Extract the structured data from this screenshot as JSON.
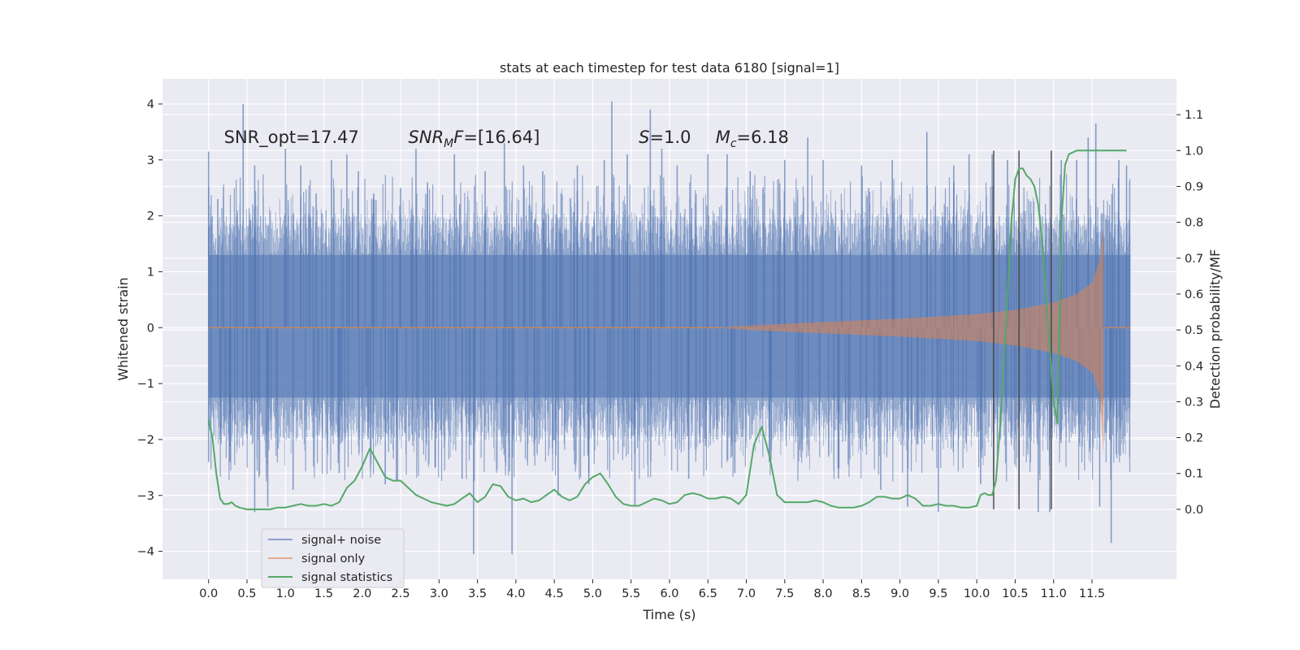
{
  "chart_data": {
    "type": "line",
    "title": "stats at each timestep for test data 6180 [signal=1]",
    "xlabel": "Time (s)",
    "ylabel_left": "Whitened strain",
    "ylabel_right": "Detection probability/MF",
    "xlim": [
      -0.6,
      12.6
    ],
    "ylim_left": [
      -4.5,
      4.45
    ],
    "ylim_right": [
      -0.195,
      1.2
    ],
    "x_ticks": [
      0.0,
      0.5,
      1.0,
      1.5,
      2.0,
      2.5,
      3.0,
      3.5,
      4.0,
      4.5,
      5.0,
      5.5,
      6.0,
      6.5,
      7.0,
      7.5,
      8.0,
      8.5,
      9.0,
      9.5,
      10.0,
      10.5,
      11.0,
      11.5
    ],
    "x_tick_labels": [
      "0.0",
      "0.5",
      "1.0",
      "1.5",
      "2.0",
      "2.5",
      "3.0",
      "3.5",
      "4.0",
      "4.5",
      "5.0",
      "5.5",
      "6.0",
      "6.5",
      "7.0",
      "7.5",
      "8.0",
      "8.5",
      "9.0",
      "9.5",
      "10.0",
      "10.5",
      "11.0",
      "11.5"
    ],
    "y_ticks_left": [
      -4,
      -3,
      -2,
      -1,
      0,
      1,
      2,
      3,
      4
    ],
    "y_tick_labels_left": [
      "−4",
      "−3",
      "−2",
      "−1",
      "0",
      "1",
      "2",
      "3",
      "4"
    ],
    "y_ticks_right": [
      0.0,
      0.1,
      0.2,
      0.3,
      0.4,
      0.5,
      0.6,
      0.7,
      0.8,
      0.9,
      1.0,
      1.1
    ],
    "y_tick_labels_right": [
      "0.0",
      "0.1",
      "0.2",
      "0.3",
      "0.4",
      "0.5",
      "0.6",
      "0.7",
      "0.8",
      "0.9",
      "1.0",
      "1.1"
    ],
    "grid": true,
    "legend_position": "lower-left",
    "colors": {
      "background": "#eaeaf2",
      "grid": "#ffffff",
      "signal_noise": "#4c72b0",
      "signal_only": "#dd8452",
      "statistics": "#55a868",
      "vlines": "#444444"
    },
    "annotations": [
      {
        "id": "snr-opt",
        "parts": [
          {
            "text": "SNR_opt=17.47",
            "italic": false
          }
        ],
        "x": 0.2,
        "y": 3.3
      },
      {
        "id": "snr-mf",
        "parts": [
          {
            "text": "SNR",
            "italic": true
          },
          {
            "text": "M",
            "italic": true,
            "sub": true
          },
          {
            "text": "F",
            "italic": true
          },
          {
            "text": "=[16.64]",
            "italic": false
          }
        ],
        "x": 2.6,
        "y": 3.3
      },
      {
        "id": "s-value",
        "parts": [
          {
            "text": "S",
            "italic": true
          },
          {
            "text": "=1.0",
            "italic": false
          }
        ],
        "x": 5.6,
        "y": 3.3
      },
      {
        "id": "mc-value",
        "parts": [
          {
            "text": "M",
            "italic": true
          },
          {
            "text": "c",
            "italic": true,
            "sub": true
          },
          {
            "text": "=6.18",
            "italic": false
          }
        ],
        "x": 6.6,
        "y": 3.3
      }
    ],
    "series": [
      {
        "name": "signal+ noise",
        "axis": "left",
        "style": "noise-band",
        "x_range": [
          0.0,
          12.0
        ],
        "dense_envelope": [
          -1.25,
          1.3
        ],
        "spike_tips": [
          {
            "x": 0.0,
            "y": 3.15
          },
          {
            "x": 0.0,
            "y": -2.4
          },
          {
            "x": 0.45,
            "y": 4.0
          },
          {
            "x": 0.12,
            "y": 2.3
          },
          {
            "x": 0.28,
            "y": -2.4
          },
          {
            "x": 0.6,
            "y": 2.9
          },
          {
            "x": 0.6,
            "y": -3.3
          },
          {
            "x": 0.77,
            "y": -3.2
          },
          {
            "x": 1.0,
            "y": 3.2
          },
          {
            "x": 1.1,
            "y": -2.9
          },
          {
            "x": 1.2,
            "y": 2.9
          },
          {
            "x": 1.4,
            "y": 2.4
          },
          {
            "x": 1.6,
            "y": 3.0
          },
          {
            "x": 1.8,
            "y": 3.1
          },
          {
            "x": 1.7,
            "y": -2.6
          },
          {
            "x": 1.95,
            "y": 2.8
          },
          {
            "x": 2.05,
            "y": -1.05
          },
          {
            "x": 2.15,
            "y": 2.4
          },
          {
            "x": 2.3,
            "y": -2.8
          },
          {
            "x": 2.5,
            "y": 2.5
          },
          {
            "x": 2.7,
            "y": 3.2
          },
          {
            "x": 2.85,
            "y": 2.6
          },
          {
            "x": 2.95,
            "y": -2.5
          },
          {
            "x": 3.2,
            "y": 3.1
          },
          {
            "x": 3.3,
            "y": -2.7
          },
          {
            "x": 3.45,
            "y": -4.05
          },
          {
            "x": 3.6,
            "y": 2.8
          },
          {
            "x": 3.85,
            "y": 3.3
          },
          {
            "x": 3.95,
            "y": -4.05
          },
          {
            "x": 4.1,
            "y": 2.9
          },
          {
            "x": 4.35,
            "y": 2.8
          },
          {
            "x": 4.55,
            "y": -3.0
          },
          {
            "x": 4.8,
            "y": 2.9
          },
          {
            "x": 4.95,
            "y": -2.8
          },
          {
            "x": 5.15,
            "y": 3.0
          },
          {
            "x": 5.25,
            "y": 4.05
          },
          {
            "x": 5.45,
            "y": 3.1
          },
          {
            "x": 5.55,
            "y": -3.2
          },
          {
            "x": 5.75,
            "y": 3.9
          },
          {
            "x": 5.9,
            "y": 3.2
          },
          {
            "x": 6.1,
            "y": 2.9
          },
          {
            "x": 6.25,
            "y": -2.7
          },
          {
            "x": 6.5,
            "y": 3.1
          },
          {
            "x": 6.75,
            "y": 3.1
          },
          {
            "x": 6.85,
            "y": -2.6
          },
          {
            "x": 7.05,
            "y": 2.8
          },
          {
            "x": 7.3,
            "y": -2.4
          },
          {
            "x": 7.5,
            "y": 3.0
          },
          {
            "x": 7.8,
            "y": 3.4
          },
          {
            "x": 8.0,
            "y": 3.0
          },
          {
            "x": 8.2,
            "y": -2.7
          },
          {
            "x": 8.5,
            "y": 2.9
          },
          {
            "x": 8.75,
            "y": -2.9
          },
          {
            "x": 8.9,
            "y": 3.0
          },
          {
            "x": 9.1,
            "y": -3.2
          },
          {
            "x": 9.35,
            "y": 3.5
          },
          {
            "x": 9.5,
            "y": -3.3
          },
          {
            "x": 9.7,
            "y": 2.9
          },
          {
            "x": 9.9,
            "y": 3.1
          },
          {
            "x": 10.05,
            "y": -2.8
          },
          {
            "x": 10.2,
            "y": 3.1
          },
          {
            "x": 10.4,
            "y": 3.0
          },
          {
            "x": 10.55,
            "y": -3.0
          },
          {
            "x": 10.8,
            "y": -3.3
          },
          {
            "x": 10.95,
            "y": -3.3
          },
          {
            "x": 11.1,
            "y": 3.0
          },
          {
            "x": 11.3,
            "y": 3.0
          },
          {
            "x": 11.45,
            "y": 3.4
          },
          {
            "x": 11.55,
            "y": 3.65
          },
          {
            "x": 11.6,
            "y": -3.2
          },
          {
            "x": 11.75,
            "y": -3.85
          },
          {
            "x": 11.85,
            "y": 3.0
          },
          {
            "x": 11.95,
            "y": 2.9
          }
        ]
      },
      {
        "name": "signal only",
        "axis": "left",
        "style": "chirp-band",
        "x_range": [
          6.7,
          11.7
        ],
        "envelope": [
          [
            6.8,
            0.02
          ],
          [
            7.0,
            0.035
          ],
          [
            7.5,
            0.07
          ],
          [
            8.0,
            0.1
          ],
          [
            8.5,
            0.13
          ],
          [
            9.0,
            0.16
          ],
          [
            9.5,
            0.2
          ],
          [
            10.0,
            0.24
          ],
          [
            10.5,
            0.32
          ],
          [
            11.0,
            0.45
          ],
          [
            11.3,
            0.6
          ],
          [
            11.5,
            0.8
          ],
          [
            11.6,
            1.2
          ],
          [
            11.65,
            1.75
          ]
        ],
        "lower_tip": -2.3,
        "cutoff_x": 11.67
      },
      {
        "name": "signal statistics",
        "axis": "right",
        "x": [
          0.0,
          0.05,
          0.1,
          0.15,
          0.2,
          0.25,
          0.3,
          0.35,
          0.4,
          0.5,
          0.6,
          0.7,
          0.8,
          0.9,
          1.0,
          1.1,
          1.2,
          1.3,
          1.4,
          1.5,
          1.6,
          1.7,
          1.8,
          1.9,
          2.0,
          2.1,
          2.2,
          2.3,
          2.4,
          2.5,
          2.6,
          2.7,
          2.8,
          2.9,
          3.0,
          3.1,
          3.2,
          3.3,
          3.4,
          3.5,
          3.6,
          3.7,
          3.8,
          3.9,
          4.0,
          4.1,
          4.2,
          4.3,
          4.4,
          4.5,
          4.6,
          4.7,
          4.8,
          4.9,
          5.0,
          5.05,
          5.1,
          5.2,
          5.3,
          5.4,
          5.5,
          5.6,
          5.7,
          5.8,
          5.9,
          6.0,
          6.1,
          6.2,
          6.3,
          6.4,
          6.5,
          6.6,
          6.7,
          6.8,
          6.9,
          7.0,
          7.1,
          7.2,
          7.3,
          7.4,
          7.5,
          7.6,
          7.7,
          7.8,
          7.9,
          8.0,
          8.1,
          8.2,
          8.3,
          8.4,
          8.5,
          8.6,
          8.7,
          8.8,
          8.9,
          9.0,
          9.1,
          9.2,
          9.3,
          9.4,
          9.5,
          9.6,
          9.7,
          9.8,
          9.9,
          10.0,
          10.05,
          10.1,
          10.15,
          10.2,
          10.25,
          10.3,
          10.35,
          10.4,
          10.45,
          10.5,
          10.55,
          10.6,
          10.65,
          10.7,
          10.75,
          10.8,
          10.85,
          10.9,
          10.95,
          11.0,
          11.05,
          11.1,
          11.15,
          11.2,
          11.3,
          11.4,
          11.5,
          11.6,
          11.7,
          11.8,
          11.9,
          11.95
        ],
        "y": [
          0.25,
          0.2,
          0.1,
          0.03,
          0.015,
          0.015,
          0.02,
          0.01,
          0.005,
          0.0,
          0.0,
          0.0,
          0.0,
          0.005,
          0.005,
          0.01,
          0.015,
          0.01,
          0.01,
          0.015,
          0.01,
          0.02,
          0.06,
          0.08,
          0.12,
          0.17,
          0.13,
          0.09,
          0.08,
          0.08,
          0.06,
          0.04,
          0.03,
          0.02,
          0.015,
          0.01,
          0.015,
          0.03,
          0.045,
          0.02,
          0.035,
          0.07,
          0.065,
          0.035,
          0.025,
          0.03,
          0.02,
          0.025,
          0.04,
          0.055,
          0.035,
          0.025,
          0.035,
          0.07,
          0.09,
          0.095,
          0.1,
          0.07,
          0.035,
          0.015,
          0.01,
          0.01,
          0.02,
          0.03,
          0.025,
          0.015,
          0.02,
          0.04,
          0.045,
          0.04,
          0.03,
          0.03,
          0.035,
          0.03,
          0.015,
          0.04,
          0.18,
          0.23,
          0.15,
          0.04,
          0.02,
          0.02,
          0.02,
          0.02,
          0.025,
          0.02,
          0.01,
          0.005,
          0.005,
          0.005,
          0.01,
          0.02,
          0.035,
          0.035,
          0.03,
          0.03,
          0.04,
          0.03,
          0.01,
          0.01,
          0.015,
          0.01,
          0.01,
          0.005,
          0.005,
          0.01,
          0.04,
          0.045,
          0.04,
          0.04,
          0.08,
          0.22,
          0.4,
          0.6,
          0.8,
          0.92,
          0.95,
          0.95,
          0.93,
          0.92,
          0.9,
          0.85,
          0.75,
          0.6,
          0.45,
          0.3,
          0.24,
          0.8,
          0.96,
          0.99,
          1.0,
          1.0,
          1.0,
          1.0,
          1.0,
          1.0,
          1.0,
          1.0
        ]
      }
    ],
    "vlines": {
      "x": [
        10.22,
        10.55,
        10.97
      ],
      "y_range": [
        0.0,
        1.0
      ],
      "axis": "right"
    }
  }
}
